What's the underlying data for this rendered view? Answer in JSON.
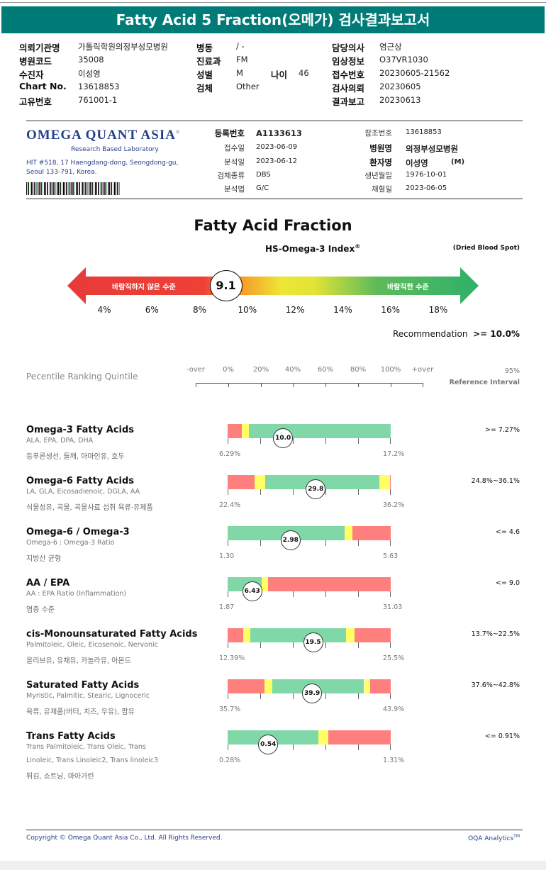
{
  "title": "Fatty Acid 5 Fraction(오메가) 검사결과보고서",
  "info": [
    {
      "label": "의뢰기관명",
      "value": "가톨릭학원의정부성모병원"
    },
    {
      "label": "병원코드",
      "value": "35008"
    },
    {
      "label": "수진자",
      "value": "이성영"
    },
    {
      "label": "Chart No.",
      "value": "13618853"
    },
    {
      "label": "고유번호",
      "value": "761001-1"
    },
    {
      "label": "병동",
      "value": "/ -"
    },
    {
      "label": "진료과",
      "value": "FM"
    },
    {
      "label": "성별",
      "value": "M"
    },
    {
      "label": "검체",
      "value": "Other"
    },
    {
      "label": "나이",
      "value": "46"
    },
    {
      "label": "담당의사",
      "value": "염근상"
    },
    {
      "label": "임상정보",
      "value": "O37VR1030"
    },
    {
      "label": "접수번호",
      "value": "20230605-21562"
    },
    {
      "label": "검사의뢰",
      "value": "20230605"
    },
    {
      "label": "결과보고",
      "value": "20230613"
    }
  ],
  "lab": {
    "name": "OMEGA QUANT ASIA",
    "reg": "®",
    "tagline": "Research Based Laboratory",
    "address1": "HIT #518, 17 Haengdang-dong, Seongdong-gu,",
    "address2": "Seoul 133-791, Korea."
  },
  "meta_mid": [
    {
      "label": "등록번호",
      "value": "A1133613"
    },
    {
      "label": "접수일",
      "value": "2023-06-09"
    },
    {
      "label": "분석일",
      "value": "2023-06-12"
    },
    {
      "label": "검체종류",
      "value": "DBS"
    },
    {
      "label": "분석법",
      "value": "G/C"
    }
  ],
  "meta_right": [
    {
      "label": "참조번호",
      "value": "13618853"
    },
    {
      "label": "병원명",
      "value": "의정부성모병원"
    },
    {
      "label": "환자명",
      "value": "이성영",
      "suffix": "(M)"
    },
    {
      "label": "생년월일",
      "value": "1976-10-01"
    },
    {
      "label": "채혈일",
      "value": "2023-06-05"
    }
  ],
  "section_title": "Fatty Acid Fraction",
  "index": {
    "name": "HS-Omega-3 Index",
    "reg": "®",
    "sample": "(Dried Blood Spot)",
    "value": "9.1",
    "value_num": 9.1,
    "bad_label": "바람직하지 않은 수준",
    "good_label": "바람직한 수준",
    "ticks": [
      "4%",
      "6%",
      "8%",
      "10%",
      "12%",
      "14%",
      "16%",
      "18%"
    ],
    "recommendation_label": "Recommendation",
    "recommendation": ">= 10.0%"
  },
  "percentile": {
    "label": "Pecentile Ranking Quintile",
    "ticks": [
      "-over",
      "0%",
      "20%",
      "40%",
      "60%",
      "80%",
      "100%",
      "+over"
    ],
    "ref_label1": "95%",
    "ref_label2": "Reference Interval"
  },
  "colors": {
    "header": "#007b78",
    "red": "#ff7f7f",
    "yellow": "#ffff66",
    "green": "#80d8a8"
  },
  "rows": [
    {
      "title": "Omega-3 Fatty Acids",
      "sub": [
        "ALA, EPA, DPA, DHA"
      ],
      "ko": "등푸른생선, 들깨, 아마인유, 호두",
      "value": "10.0",
      "pct": 34,
      "min": "6.29%",
      "max": "17.2%",
      "ref": ">= 7.27%",
      "segments": [
        [
          "red",
          0,
          8.8
        ],
        [
          "yellow",
          8.8,
          13.1
        ],
        [
          "green",
          13.1,
          100
        ]
      ]
    },
    {
      "title": "Omega-6 Fatty Acids",
      "sub": [
        "LA, GLA, Eicosadienoic, DGLA, AA"
      ],
      "ko": "식물성유, 곡물, 곡물사료 섭취 육류·유제품",
      "value": "29.8",
      "pct": 54,
      "min": "22.4%",
      "max": "36.2%",
      "ref": "24.8%~36.1%",
      "segments": [
        [
          "red",
          0,
          16.5
        ],
        [
          "yellow",
          16.5,
          22.9
        ],
        [
          "green",
          22.9,
          93.1
        ],
        [
          "yellow",
          93.1,
          99.4
        ],
        [
          "red",
          99.4,
          100
        ]
      ]
    },
    {
      "title": "Omega-6 / Omega-3",
      "sub": [
        "Omega-6 : Omega-3 Ratio"
      ],
      "ko": "지방산 균형",
      "value": "2.98",
      "pct": 38.6,
      "min": "1.30",
      "max": "5.63",
      "ref": "<= 4.6",
      "segments": [
        [
          "green",
          0,
          71.6
        ],
        [
          "yellow",
          71.6,
          76.7
        ],
        [
          "red",
          76.7,
          100
        ]
      ]
    },
    {
      "title": "AA / EPA",
      "sub": [
        "AA : EPA Ratio (Inflammation)"
      ],
      "ko": "염증 수준",
      "value": "6.43",
      "pct": 15.1,
      "min": "1.87",
      "max": "31.03",
      "ref": "<= 9.0",
      "segments": [
        [
          "green",
          0,
          20.8
        ],
        [
          "yellow",
          20.8,
          24.9
        ],
        [
          "red",
          24.9,
          100
        ]
      ]
    },
    {
      "title": "cis-Monounsaturated Fatty Acids",
      "sub": [
        "Palmitoleic, Oleic, Eicosenoic, Nervonic"
      ],
      "ko": "올리브유, 유채유, 카놀라유, 아몬드",
      "value": "19.5",
      "pct": 52.4,
      "min": "12.39%",
      "max": "25.5%",
      "ref": "13.7%~22.5%",
      "segments": [
        [
          "red",
          0,
          9.6
        ],
        [
          "yellow",
          9.6,
          13.7
        ],
        [
          "green",
          13.7,
          72.5
        ],
        [
          "yellow",
          72.5,
          77.8
        ],
        [
          "red",
          77.8,
          100
        ]
      ]
    },
    {
      "title": "Saturated Fatty Acids",
      "sub": [
        "Myristic, Palmitic, Stearic, Lignoceric"
      ],
      "ko": "육류, 유제품(버터, 치즈, 우유), 팜유",
      "value": "39.9",
      "pct": 51.8,
      "min": "35.7%",
      "max": "43.9%",
      "ref": "37.6%~42.8%",
      "segments": [
        [
          "red",
          0,
          22.7
        ],
        [
          "yellow",
          22.7,
          27.6
        ],
        [
          "green",
          27.6,
          83.7
        ],
        [
          "yellow",
          83.7,
          87.6
        ],
        [
          "red",
          87.6,
          100
        ]
      ]
    },
    {
      "title": "Trans Fatty Acids",
      "sub": [
        "Trans Palmitoleic, Trans Oleic, Trans",
        "Linoleic, Trans Linoleic2, Trans linoleic3"
      ],
      "ko": "튀김, 쇼트닝, 마아가린",
      "value": "0.54",
      "pct": 24.9,
      "min": "0.28%",
      "max": "1.31%",
      "ref": "<= 0.91%",
      "segments": [
        [
          "green",
          0,
          55.7
        ],
        [
          "yellow",
          55.7,
          61.8
        ],
        [
          "red",
          61.8,
          100
        ]
      ]
    }
  ],
  "footer": {
    "copyright": "Copyright © Omega Quant Asia Co., Ltd.  All Rights Reserved.",
    "brand": "OQA Analytics",
    "tm": "TM"
  }
}
